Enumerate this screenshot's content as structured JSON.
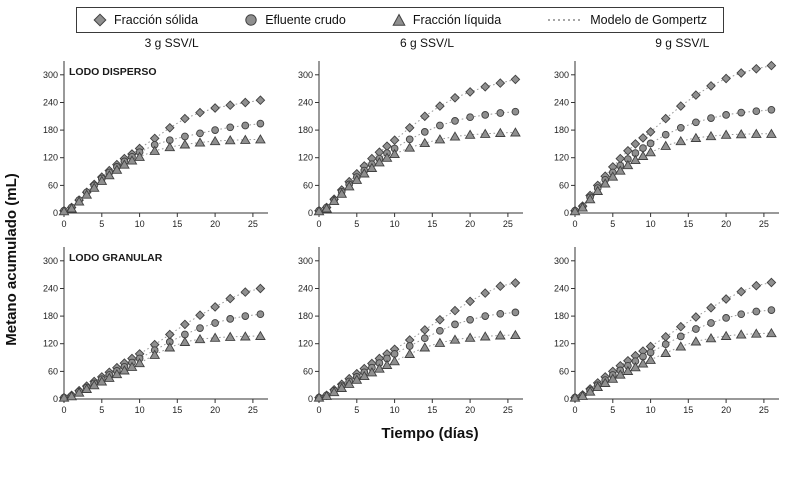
{
  "legend": {
    "items": [
      {
        "label": "Fracción sólida",
        "marker": "diamond"
      },
      {
        "label": "Efluente crudo",
        "marker": "circle"
      },
      {
        "label": "Fracción líquida",
        "marker": "triangle"
      },
      {
        "label": "Modelo de Gompertz",
        "marker": "dotted-line"
      }
    ]
  },
  "colors": {
    "marker_fill": "#8f8f8f",
    "marker_edge": "#404040",
    "model_line": "#999999",
    "axis": "#333333",
    "tick_text": "#222222"
  },
  "chart_data": {
    "type": "scatter",
    "xlabel": "Tiempo (días)",
    "ylabel": "Metano acumulado (mL)",
    "columns": [
      "3 g SSV/L",
      "6 g SSV/L",
      "9 g SSV/L"
    ],
    "rows": [
      "LODO DISPERSO",
      "LODO GRANULAR"
    ],
    "xlim": [
      0,
      27
    ],
    "ylim": [
      0,
      330
    ],
    "xticks": [
      0,
      5,
      10,
      15,
      20,
      25
    ],
    "yticks": [
      0,
      60,
      120,
      180,
      240,
      300
    ],
    "x": [
      0,
      1,
      2,
      3,
      4,
      5,
      6,
      7,
      8,
      9,
      10,
      12,
      14,
      16,
      18,
      20,
      22,
      24,
      26
    ],
    "model_note": "Modelo de Gompertz drawn as dotted curve through each series",
    "panels": [
      {
        "row": "LODO DISPERSO",
        "column": "3 g SSV/L",
        "label": "LODO DISPERSO",
        "series": [
          {
            "name": "Fracción sólida",
            "values": [
              5,
              12,
              28,
              45,
              62,
              78,
              92,
              105,
              118,
              128,
              140,
              162,
              185,
              205,
              218,
              228,
              234,
              240,
              245
            ]
          },
          {
            "name": "Efluente crudo",
            "values": [
              5,
              12,
              28,
              45,
              60,
              75,
              88,
              100,
              112,
              122,
              132,
              148,
              158,
              166,
              173,
              180,
              186,
              190,
              194
            ]
          },
          {
            "name": "Fracción líquida",
            "values": [
              4,
              10,
              25,
              40,
              55,
              70,
              82,
              94,
              105,
              114,
              122,
              135,
              143,
              149,
              153,
              156,
              158,
              159,
              160
            ]
          }
        ]
      },
      {
        "row": "LODO DISPERSO",
        "column": "6 g SSV/L",
        "label": "",
        "series": [
          {
            "name": "Fracción sólida",
            "values": [
              5,
              12,
              30,
              50,
              68,
              85,
              102,
              118,
              132,
              145,
              158,
              185,
              210,
              232,
              250,
              263,
              274,
              282,
              290
            ]
          },
          {
            "name": "Efluente crudo",
            "values": [
              5,
              12,
              28,
              46,
              62,
              78,
              92,
              106,
              118,
              130,
              140,
              160,
              176,
              190,
              200,
              208,
              213,
              217,
              220
            ]
          },
          {
            "name": "Fracción líquida",
            "values": [
              4,
              10,
              26,
              42,
              58,
              72,
              86,
              98,
              110,
              120,
              128,
              142,
              152,
              160,
              166,
              170,
              172,
              174,
              175
            ]
          }
        ]
      },
      {
        "row": "LODO DISPERSO",
        "column": "9 g SSV/L",
        "label": "",
        "series": [
          {
            "name": "Fracción sólida",
            "values": [
              5,
              15,
              38,
              60,
              80,
              100,
              118,
              135,
              150,
              163,
              176,
              205,
              232,
              256,
              276,
              292,
              304,
              313,
              320
            ]
          },
          {
            "name": "Efluente crudo",
            "values": [
              5,
              14,
              34,
              54,
              72,
              88,
              103,
              117,
              130,
              141,
              151,
              170,
              185,
              197,
              206,
              213,
              218,
              221,
              224
            ]
          },
          {
            "name": "Fracción líquida",
            "values": [
              4,
              12,
              30,
              48,
              64,
              79,
              92,
              104,
              115,
              124,
              132,
              146,
              156,
              163,
              167,
              170,
              171,
              172,
              172
            ]
          }
        ]
      },
      {
        "row": "LODO GRANULAR",
        "column": "3 g SSV/L",
        "label": "LODO GRANULAR",
        "series": [
          {
            "name": "Fracción sólida",
            "values": [
              3,
              8,
              18,
              28,
              38,
              48,
              58,
              68,
              78,
              88,
              98,
              118,
              140,
              162,
              182,
              200,
              218,
              232,
              240
            ]
          },
          {
            "name": "Efluente crudo",
            "values": [
              3,
              7,
              16,
              25,
              34,
              43,
              52,
              61,
              70,
              79,
              88,
              106,
              124,
              140,
              154,
              165,
              174,
              180,
              184
            ]
          },
          {
            "name": "Fracción líquida",
            "values": [
              3,
              6,
              14,
              22,
              30,
              38,
              46,
              54,
              62,
              70,
              78,
              96,
              112,
              124,
              130,
              133,
              135,
              136,
              137
            ]
          }
        ]
      },
      {
        "row": "LODO GRANULAR",
        "column": "6 g SSV/L",
        "label": "",
        "series": [
          {
            "name": "Fracción sólida",
            "values": [
              3,
              8,
              20,
              32,
              44,
              55,
              66,
              77,
              88,
              98,
              108,
              128,
              150,
              172,
              192,
              212,
              230,
              245,
              252
            ]
          },
          {
            "name": "Efluente crudo",
            "values": [
              3,
              8,
              18,
              28,
              38,
              48,
              58,
              68,
              78,
              88,
              98,
              115,
              132,
              148,
              162,
              172,
              180,
              185,
              188
            ]
          },
          {
            "name": "Fracción líquida",
            "values": [
              3,
              7,
              15,
              24,
              33,
              42,
              50,
              58,
              66,
              74,
              82,
              98,
              112,
              122,
              129,
              133,
              136,
              138,
              139
            ]
          }
        ]
      },
      {
        "row": "LODO GRANULAR",
        "column": "9 g SSV/L",
        "label": "",
        "series": [
          {
            "name": "Fracción sólida",
            "values": [
              3,
              9,
              22,
              35,
              48,
              60,
              72,
              83,
              94,
              104,
              114,
              135,
              157,
              178,
              198,
              217,
              233,
              246,
              253
            ]
          },
          {
            "name": "Efluente crudo",
            "values": [
              3,
              8,
              19,
              30,
              41,
              52,
              62,
              72,
              82,
              92,
              101,
              119,
              136,
              152,
              165,
              176,
              184,
              190,
              193
            ]
          },
          {
            "name": "Fracción líquida",
            "values": [
              3,
              7,
              16,
              26,
              35,
              44,
              53,
              61,
              69,
              77,
              85,
              100,
              114,
              125,
              132,
              137,
              140,
              142,
              143
            ]
          }
        ]
      }
    ]
  }
}
